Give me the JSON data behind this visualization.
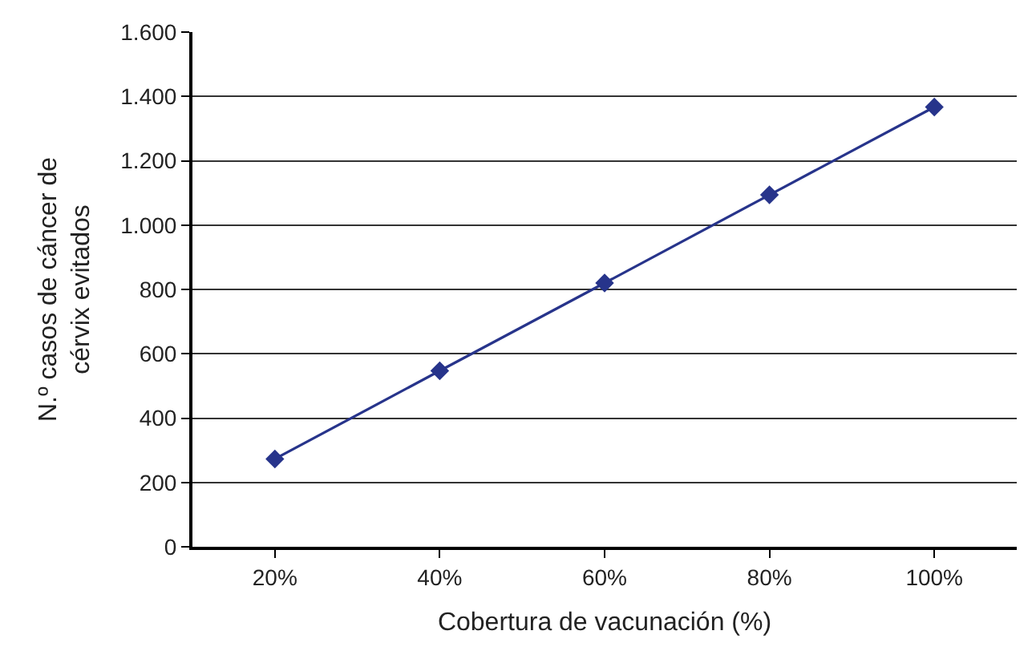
{
  "chart_data": {
    "type": "line",
    "xlabel": "Cobertura de vacunación (%)",
    "ylabel": "N.º casos de cáncer de\ncérvix evitados",
    "categories": [
      "20%",
      "40%",
      "60%",
      "80%",
      "100%"
    ],
    "series": [
      {
        "color": "#27348b",
        "values": [
          273,
          547,
          820,
          1094,
          1367
        ]
      }
    ],
    "ylim": [
      0,
      1600
    ],
    "yticks": [
      0,
      200,
      400,
      600,
      800,
      {
        "value": 1000,
        "label": "1.000"
      },
      {
        "value": 1200,
        "label": "1.200"
      },
      {
        "value": 1400,
        "label": "1.400"
      },
      {
        "value": 1600,
        "label": "1.600"
      }
    ],
    "grid": "y",
    "marker": "diamond",
    "line_style": "solid",
    "legend": false
  }
}
